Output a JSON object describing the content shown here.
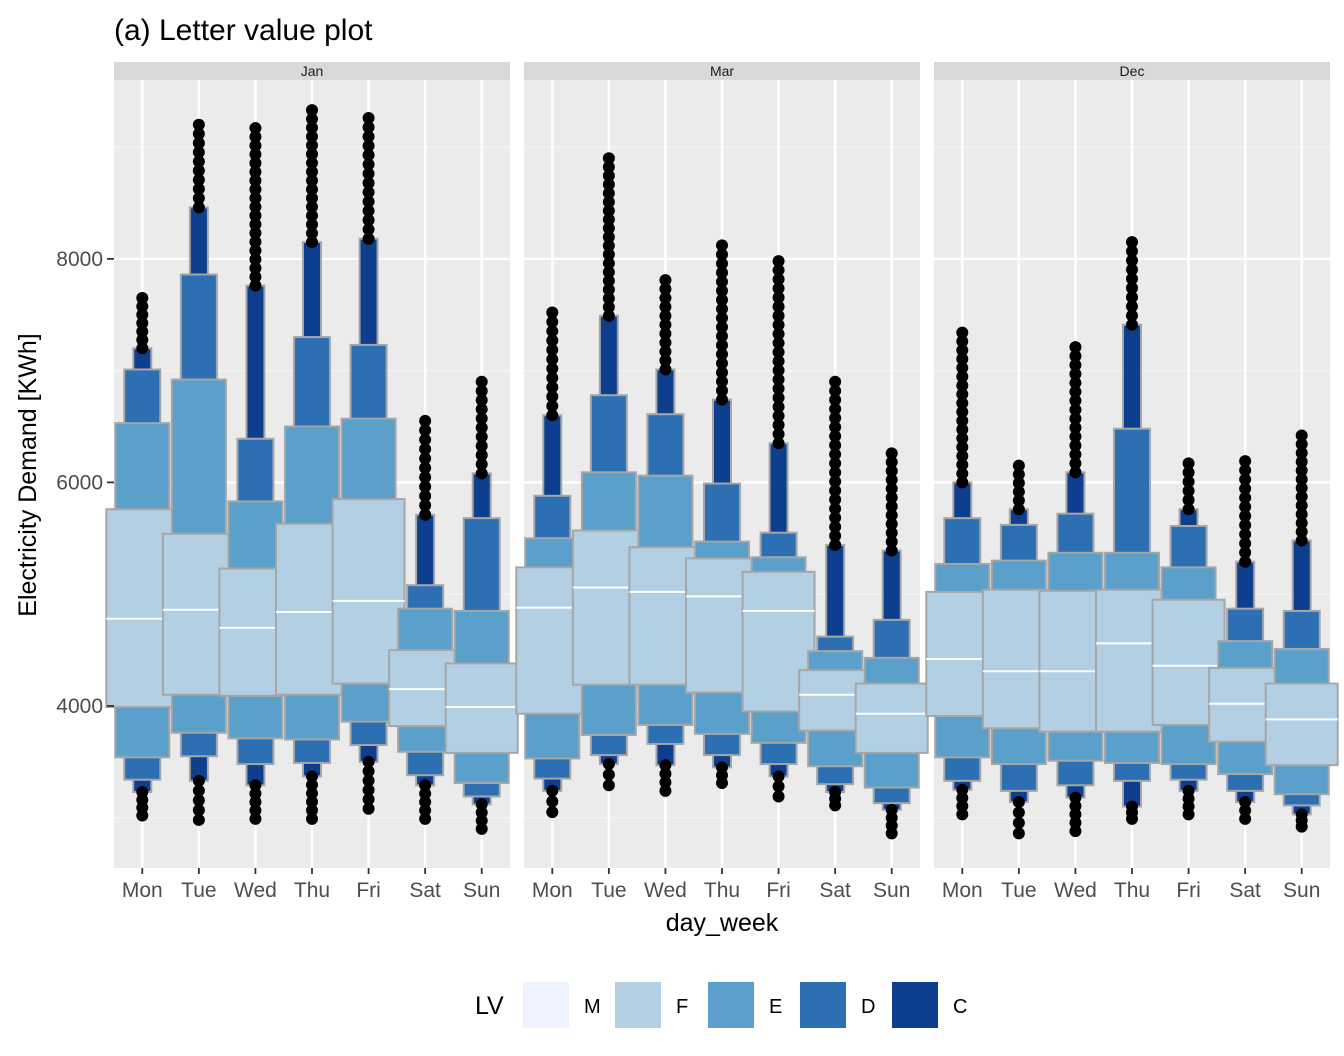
{
  "chart_data": {
    "type": "letter-value",
    "title": "(a) Letter value plot",
    "xlabel": "day_week",
    "ylabel": "Electricity Demand [KWh]",
    "ylim": [
      2550,
      9600
    ],
    "yticks": [
      4000,
      6000,
      8000
    ],
    "categories": [
      "Mon",
      "Tue",
      "Wed",
      "Thu",
      "Fri",
      "Sat",
      "Sun"
    ],
    "legend": {
      "title": "LV",
      "position": "bottom",
      "entries": [
        {
          "label": "M",
          "color": "#eff3ff"
        },
        {
          "label": "F",
          "color": "#b3cfe3"
        },
        {
          "label": "E",
          "color": "#5b9fcb"
        },
        {
          "label": "D",
          "color": "#2c6fb3"
        },
        {
          "label": "C",
          "color": "#0e3f8e"
        }
      ]
    },
    "panels": [
      {
        "name": "Jan",
        "days": [
          {
            "median": 4780,
            "F": [
              3990,
              5760
            ],
            "E": [
              3540,
              6530
            ],
            "D": [
              3340,
              7010
            ],
            "C": [
              3230,
              7200
            ],
            "outliers_low": [
              3020,
              3230
            ],
            "outliers_high": [
              7200,
              7650
            ]
          },
          {
            "median": 4860,
            "F": [
              4100,
              5540
            ],
            "E": [
              3760,
              6920
            ],
            "D": [
              3550,
              7860
            ],
            "C": [
              3330,
              8460
            ],
            "outliers_low": [
              2980,
              3330
            ],
            "outliers_high": [
              8460,
              9200
            ]
          },
          {
            "median": 4700,
            "F": [
              4090,
              5230
            ],
            "E": [
              3710,
              5830
            ],
            "D": [
              3480,
              6390
            ],
            "C": [
              3290,
              7760
            ],
            "outliers_low": [
              2990,
              3290
            ],
            "outliers_high": [
              7760,
              9170
            ]
          },
          {
            "median": 4840,
            "F": [
              4100,
              5630
            ],
            "E": [
              3700,
              6500
            ],
            "D": [
              3490,
              7300
            ],
            "C": [
              3370,
              8150
            ],
            "outliers_low": [
              2990,
              3370
            ],
            "outliers_high": [
              8150,
              9330
            ]
          },
          {
            "median": 4940,
            "F": [
              4200,
              5850
            ],
            "E": [
              3860,
              6570
            ],
            "D": [
              3650,
              7230
            ],
            "C": [
              3500,
              8180
            ],
            "outliers_low": [
              3080,
              3500
            ],
            "outliers_high": [
              8180,
              9260
            ]
          },
          {
            "median": 4150,
            "F": [
              3820,
              4500
            ],
            "E": [
              3590,
              4870
            ],
            "D": [
              3380,
              5080
            ],
            "C": [
              3290,
              5710
            ],
            "outliers_low": [
              2990,
              3290
            ],
            "outliers_high": [
              5710,
              6550
            ]
          },
          {
            "median": 3990,
            "F": [
              3580,
              4380
            ],
            "E": [
              3310,
              4850
            ],
            "D": [
              3190,
              5680
            ],
            "C": [
              3120,
              6080
            ],
            "outliers_low": [
              2900,
              3120
            ],
            "outliers_high": [
              6080,
              6900
            ]
          }
        ]
      },
      {
        "name": "Mar",
        "days": [
          {
            "median": 4880,
            "F": [
              3930,
              5240
            ],
            "E": [
              3530,
              5500
            ],
            "D": [
              3350,
              5880
            ],
            "C": [
              3240,
              6600
            ],
            "outliers_low": [
              3050,
              3240
            ],
            "outliers_high": [
              6600,
              7520
            ]
          },
          {
            "median": 5060,
            "F": [
              4190,
              5570
            ],
            "E": [
              3740,
              6090
            ],
            "D": [
              3560,
              6780
            ],
            "C": [
              3480,
              7490
            ],
            "outliers_low": [
              3290,
              3480
            ],
            "outliers_high": [
              7490,
              8900
            ]
          },
          {
            "median": 5020,
            "F": [
              4190,
              5420
            ],
            "E": [
              3830,
              6060
            ],
            "D": [
              3660,
              6610
            ],
            "C": [
              3470,
              7010
            ],
            "outliers_low": [
              3240,
              3470
            ],
            "outliers_high": [
              7010,
              7810
            ]
          },
          {
            "median": 4980,
            "F": [
              4120,
              5320
            ],
            "E": [
              3750,
              5470
            ],
            "D": [
              3560,
              5990
            ],
            "C": [
              3450,
              6740
            ],
            "outliers_low": [
              3310,
              3450
            ],
            "outliers_high": [
              6740,
              8120
            ]
          },
          {
            "median": 4850,
            "F": [
              3950,
              5200
            ],
            "E": [
              3670,
              5330
            ],
            "D": [
              3480,
              5550
            ],
            "C": [
              3370,
              6350
            ],
            "outliers_low": [
              3190,
              3370
            ],
            "outliers_high": [
              6350,
              7980
            ]
          },
          {
            "median": 4100,
            "F": [
              3780,
              4320
            ],
            "E": [
              3460,
              4490
            ],
            "D": [
              3300,
              4620
            ],
            "C": [
              3230,
              5440
            ],
            "outliers_low": [
              3110,
              3230
            ],
            "outliers_high": [
              5440,
              6900
            ]
          },
          {
            "median": 3930,
            "F": [
              3580,
              4200
            ],
            "E": [
              3270,
              4430
            ],
            "D": [
              3130,
              4770
            ],
            "C": [
              3070,
              5390
            ],
            "outliers_low": [
              2860,
              3070
            ],
            "outliers_high": [
              5390,
              6260
            ]
          }
        ]
      },
      {
        "name": "Dec",
        "days": [
          {
            "median": 4420,
            "F": [
              3910,
              5020
            ],
            "E": [
              3540,
              5270
            ],
            "D": [
              3330,
              5680
            ],
            "C": [
              3250,
              6000
            ],
            "outliers_low": [
              3030,
              3250
            ],
            "outliers_high": [
              6000,
              7340
            ]
          },
          {
            "median": 4310,
            "F": [
              3800,
              5040
            ],
            "E": [
              3480,
              5300
            ],
            "D": [
              3240,
              5620
            ],
            "C": [
              3140,
              5760
            ],
            "outliers_low": [
              2860,
              3140
            ],
            "outliers_high": [
              5760,
              6150
            ]
          },
          {
            "median": 4310,
            "F": [
              3770,
              5030
            ],
            "E": [
              3510,
              5370
            ],
            "D": [
              3290,
              5720
            ],
            "C": [
              3180,
              6090
            ],
            "outliers_low": [
              2880,
              3180
            ],
            "outliers_high": [
              6090,
              7210
            ]
          },
          {
            "median": 4560,
            "F": [
              3770,
              5040
            ],
            "E": [
              3490,
              5370
            ],
            "D": [
              3330,
              6480
            ],
            "C": [
              3100,
              7410
            ],
            "outliers_low": [
              2990,
              3100
            ],
            "outliers_high": [
              7410,
              8150
            ]
          },
          {
            "median": 4360,
            "F": [
              3830,
              4950
            ],
            "E": [
              3480,
              5240
            ],
            "D": [
              3340,
              5610
            ],
            "C": [
              3240,
              5760
            ],
            "outliers_low": [
              3030,
              3240
            ],
            "outliers_high": [
              5760,
              6170
            ]
          },
          {
            "median": 4020,
            "F": [
              3680,
              4340
            ],
            "E": [
              3390,
              4580
            ],
            "D": [
              3240,
              4870
            ],
            "C": [
              3140,
              5290
            ],
            "outliers_low": [
              2990,
              3140
            ],
            "outliers_high": [
              5290,
              6190
            ]
          },
          {
            "median": 3880,
            "F": [
              3470,
              4200
            ],
            "E": [
              3210,
              4510
            ],
            "D": [
              3110,
              4850
            ],
            "C": [
              3030,
              5480
            ],
            "outliers_low": [
              2920,
              3030
            ],
            "outliers_high": [
              5480,
              6420
            ]
          }
        ]
      }
    ]
  }
}
